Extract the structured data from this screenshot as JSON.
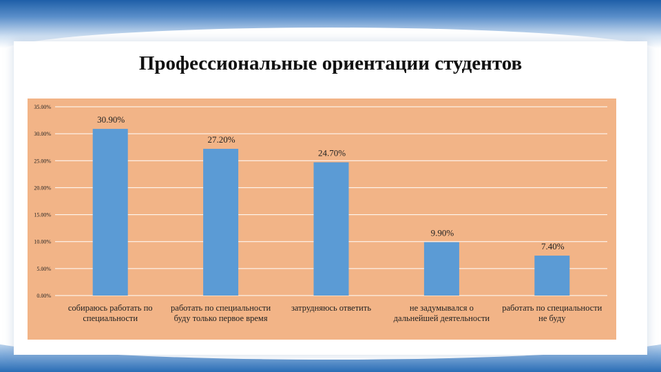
{
  "title": "Профессиональные ориентации студентов",
  "colors": {
    "bar": "#5b9bd5",
    "plot_bg": "#f2b487",
    "grid": "#ffffff"
  },
  "chart_data": {
    "type": "bar",
    "title": "Профессиональные ориентации студентов",
    "categories": [
      "собираюсь работать по специальности",
      "работать по специальности буду только первое время",
      "затрудняюсь ответить",
      "не задумывался о дальнейшей деятельности",
      "работать по специальности не буду"
    ],
    "values": [
      30.9,
      27.2,
      24.7,
      9.9,
      7.4
    ],
    "value_labels": [
      "30.90%",
      "27.20%",
      "24.70%",
      "9.90%",
      "7.40%"
    ],
    "ylim": [
      0,
      35
    ],
    "yticks": [
      0,
      5,
      10,
      15,
      20,
      25,
      30,
      35
    ],
    "ytick_labels": [
      "0.00%",
      "5.00%",
      "10.00%",
      "15.00%",
      "20.00%",
      "25.00%",
      "30.00%",
      "35.00%"
    ],
    "xlabel": "",
    "ylabel": "",
    "grid": true,
    "legend": false
  }
}
